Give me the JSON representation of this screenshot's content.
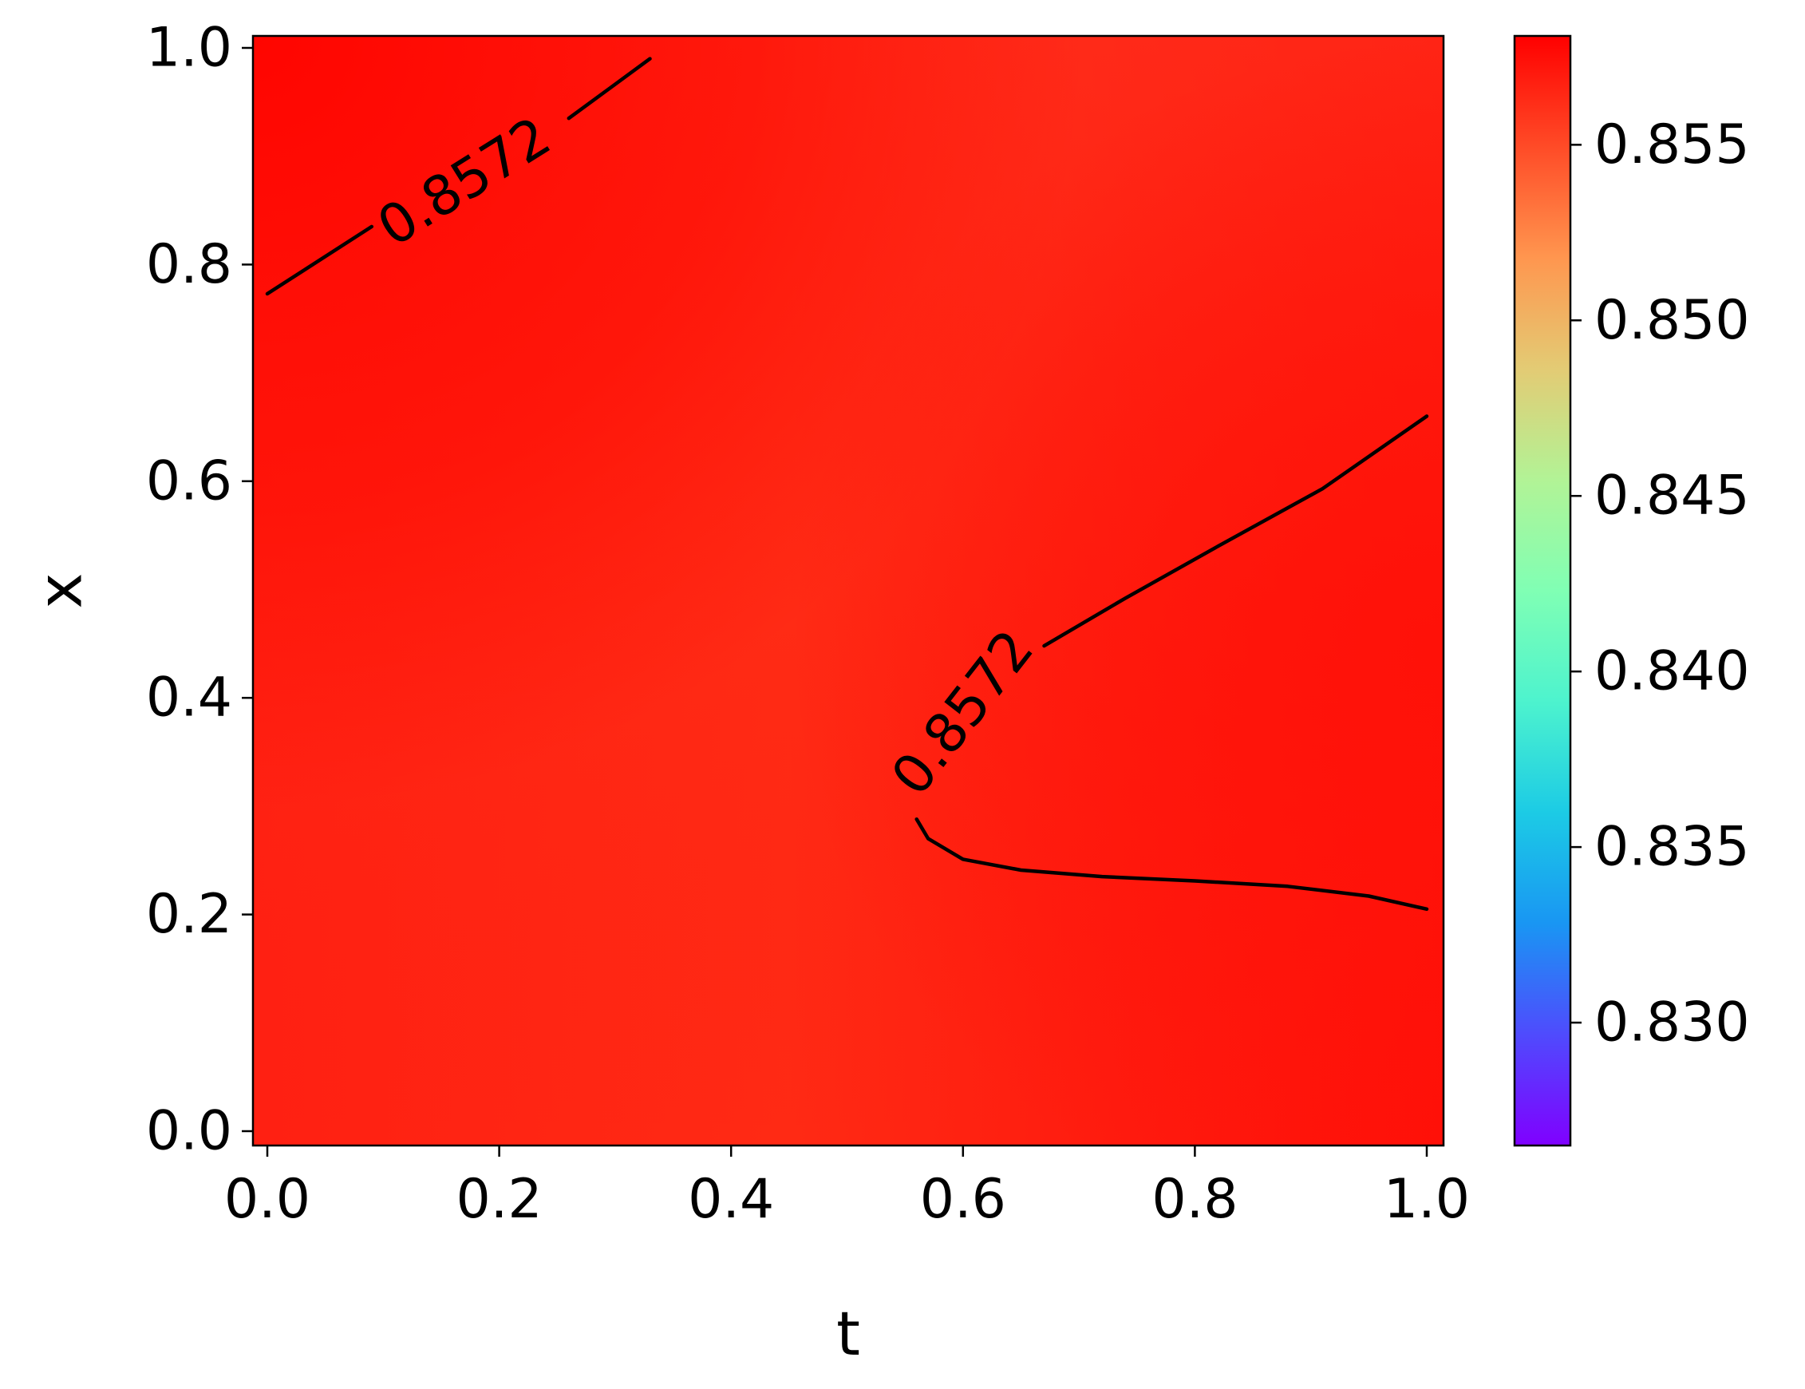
{
  "chart_data": {
    "type": "heatmap",
    "title": "",
    "xlabel": "t",
    "ylabel": "x",
    "xlim": [
      0.0,
      1.0
    ],
    "ylim": [
      0.0,
      1.0
    ],
    "xticks": [
      "0.0",
      "0.2",
      "0.4",
      "0.6",
      "0.8",
      "1.0"
    ],
    "yticks": [
      "0.0",
      "0.2",
      "0.4",
      "0.6",
      "0.8",
      "1.0"
    ],
    "grid": false,
    "colormap": "rainbow",
    "colorbar": {
      "range": [
        0.8265,
        0.8581
      ],
      "ticks": [
        "0.830",
        "0.835",
        "0.840",
        "0.845",
        "0.850",
        "0.855"
      ]
    },
    "field_colors": {
      "top_left": "#ff0500",
      "top_center": "#ff3018",
      "top_right": "#ff3520",
      "mid_center": "#ff2a14",
      "bottom_left": "#ff2012",
      "bottom_center": "#ff1a0e",
      "right_band": "#ff1008",
      "bottom_right": "#ff1a0e"
    },
    "contours": [
      {
        "level_label": "0.8572",
        "color": "#000000",
        "segments": [
          {
            "points": [
              [
                0.0,
                0.773
              ],
              [
                0.09,
                0.835
              ]
            ],
            "label_anchor": [
              0.17,
              0.876
            ],
            "label_angle": -32
          },
          {
            "points": [
              [
                0.26,
                0.935
              ],
              [
                0.33,
                0.99
              ]
            ]
          },
          {
            "points": [
              [
                0.67,
                0.448
              ],
              [
                0.74,
                0.492
              ],
              [
                0.82,
                0.54
              ],
              [
                0.91,
                0.593
              ],
              [
                1.0,
                0.66
              ]
            ],
            "label_anchor": [
              0.6,
              0.386
            ],
            "label_angle": -52
          },
          {
            "points": [
              [
                0.56,
                0.288
              ],
              [
                0.57,
                0.27
              ],
              [
                0.6,
                0.251
              ],
              [
                0.65,
                0.241
              ],
              [
                0.72,
                0.235
              ],
              [
                0.8,
                0.231
              ],
              [
                0.88,
                0.226
              ],
              [
                0.95,
                0.217
              ],
              [
                1.0,
                0.205
              ]
            ]
          }
        ]
      }
    ]
  }
}
